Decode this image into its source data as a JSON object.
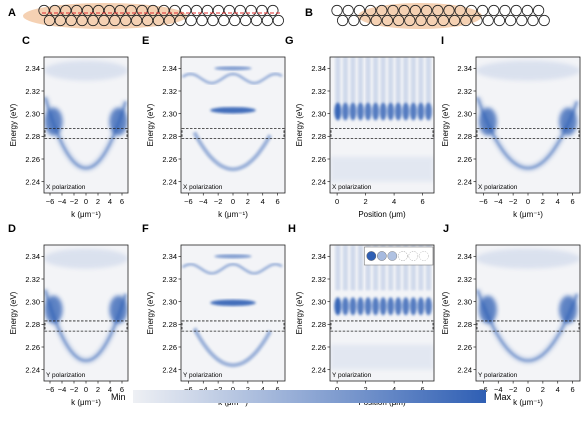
{
  "figure": {
    "panel_A": {
      "letter": "A"
    },
    "panel_B": {
      "letter": "B"
    },
    "colorbar": {
      "min_label": "Min",
      "max_label": "Max",
      "colors": [
        "#eef0f4",
        "#2f5fb4"
      ]
    },
    "accent_colors": {
      "map_dark": "#2f5fb4",
      "highlight": "#f3c9a6",
      "red_line": "#e03030"
    }
  },
  "chart_data": [
    {
      "panel": "C",
      "type": "heatmap",
      "xlabel": "k (μm⁻¹)",
      "ylabel": "Energy (eV)",
      "xticks": [
        -6,
        -4,
        -2,
        0,
        2,
        4,
        6
      ],
      "yticks": [
        2.24,
        2.26,
        2.28,
        2.3,
        2.32,
        2.34
      ],
      "xlim": [
        -7,
        7
      ],
      "ylim": [
        2.23,
        2.35
      ],
      "annotation": "X polarization",
      "box": {
        "e_min": 2.278,
        "e_max": 2.287
      }
    },
    {
      "panel": "E",
      "type": "heatmap",
      "xlabel": "k (μm⁻¹)",
      "ylabel": "Energy (eV)",
      "xticks": [
        -6,
        -4,
        -2,
        0,
        2,
        4,
        6
      ],
      "yticks": [
        2.24,
        2.26,
        2.28,
        2.3,
        2.32,
        2.34
      ],
      "xlim": [
        -7,
        7
      ],
      "ylim": [
        2.23,
        2.35
      ],
      "annotation": "X polarization",
      "box": {
        "e_min": 2.278,
        "e_max": 2.287
      }
    },
    {
      "panel": "G",
      "type": "heatmap",
      "xlabel": "Position (μm)",
      "ylabel": "Energy (eV)",
      "xticks": [
        0,
        2,
        4,
        6
      ],
      "yticks": [
        2.24,
        2.26,
        2.28,
        2.3,
        2.32,
        2.34
      ],
      "xlim": [
        -0.5,
        6.8
      ],
      "ylim": [
        2.23,
        2.35
      ],
      "annotation": "X polarization",
      "box": {
        "e_min": 2.278,
        "e_max": 2.287
      }
    },
    {
      "panel": "I",
      "type": "heatmap",
      "xlabel": "k (μm⁻¹)",
      "ylabel": "Energy (eV)",
      "xticks": [
        -6,
        -4,
        -2,
        0,
        2,
        4,
        6
      ],
      "yticks": [
        2.24,
        2.26,
        2.28,
        2.3,
        2.32,
        2.34
      ],
      "xlim": [
        -7,
        7
      ],
      "ylim": [
        2.23,
        2.35
      ],
      "annotation": "X polarization",
      "box": {
        "e_min": 2.278,
        "e_max": 2.287
      }
    },
    {
      "panel": "D",
      "type": "heatmap",
      "xlabel": "k (μm⁻¹)",
      "ylabel": "Energy (eV)",
      "xticks": [
        -6,
        -4,
        -2,
        0,
        2,
        4,
        6
      ],
      "yticks": [
        2.24,
        2.26,
        2.28,
        2.3,
        2.32,
        2.34
      ],
      "xlim": [
        -7,
        7
      ],
      "ylim": [
        2.23,
        2.35
      ],
      "annotation": "Y polarization",
      "box": {
        "e_min": 2.274,
        "e_max": 2.283
      }
    },
    {
      "panel": "F",
      "type": "heatmap",
      "xlabel": "k (μm⁻¹)",
      "ylabel": "Energy (eV)",
      "xticks": [
        -6,
        -4,
        -2,
        0,
        2,
        4,
        6
      ],
      "yticks": [
        2.24,
        2.26,
        2.28,
        2.3,
        2.32,
        2.34
      ],
      "xlim": [
        -7,
        7
      ],
      "ylim": [
        2.23,
        2.35
      ],
      "annotation": "Y polarization",
      "box": {
        "e_min": 2.274,
        "e_max": 2.283
      }
    },
    {
      "panel": "H",
      "type": "heatmap",
      "xlabel": "Position (μm)",
      "ylabel": "Energy (eV)",
      "xticks": [
        0,
        2,
        4,
        6
      ],
      "yticks": [
        2.24,
        2.26,
        2.28,
        2.3,
        2.32,
        2.34
      ],
      "xlim": [
        -0.5,
        6.8
      ],
      "ylim": [
        2.23,
        2.35
      ],
      "annotation": "Y polarization",
      "box": {
        "e_min": 2.274,
        "e_max": 2.283
      }
    },
    {
      "panel": "J",
      "type": "heatmap",
      "xlabel": "k (μm⁻¹)",
      "ylabel": "Energy (eV)",
      "xticks": [
        -6,
        -4,
        -2,
        0,
        2,
        4,
        6
      ],
      "yticks": [
        2.24,
        2.26,
        2.28,
        2.3,
        2.32,
        2.34
      ],
      "xlim": [
        -7,
        7
      ],
      "ylim": [
        2.23,
        2.35
      ],
      "annotation": "Y polarization",
      "box": {
        "e_min": 2.274,
        "e_max": 2.283
      }
    }
  ]
}
